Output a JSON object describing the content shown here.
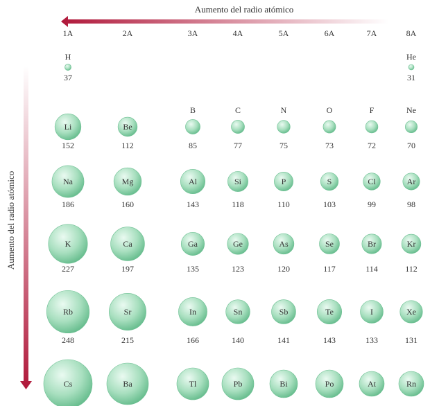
{
  "header": {
    "horizontal_title": "Aumento del radio atómico",
    "vertical_title": "Aumento del radio atómico"
  },
  "groups": [
    "1A",
    "2A",
    "3A",
    "4A",
    "5A",
    "6A",
    "7A",
    "8A"
  ],
  "colors": {
    "arrow_dark": "#b0183a",
    "arrow_light": "#ffffff",
    "sphere_light": "#eafaf1",
    "sphere_mid": "#a8dfbf",
    "sphere_dark": "#5eb887"
  },
  "elements": [
    {
      "symbol": "H",
      "radius": 37,
      "period": 1,
      "col": 0,
      "label": "outside"
    },
    {
      "symbol": "He",
      "radius": 31,
      "period": 1,
      "col": 7,
      "label": "outside"
    },
    {
      "symbol": "Li",
      "radius": 152,
      "period": 2,
      "col": 0,
      "label": "inside"
    },
    {
      "symbol": "Be",
      "radius": 112,
      "period": 2,
      "col": 1,
      "label": "inside"
    },
    {
      "symbol": "B",
      "radius": 85,
      "period": 2,
      "col": 2,
      "label": "outside"
    },
    {
      "symbol": "C",
      "radius": 77,
      "period": 2,
      "col": 3,
      "label": "outside"
    },
    {
      "symbol": "N",
      "radius": 75,
      "period": 2,
      "col": 4,
      "label": "outside"
    },
    {
      "symbol": "O",
      "radius": 73,
      "period": 2,
      "col": 5,
      "label": "outside"
    },
    {
      "symbol": "F",
      "radius": 72,
      "period": 2,
      "col": 6,
      "label": "outside"
    },
    {
      "symbol": "Ne",
      "radius": 70,
      "period": 2,
      "col": 7,
      "label": "outside"
    },
    {
      "symbol": "Na",
      "radius": 186,
      "period": 3,
      "col": 0,
      "label": "inside"
    },
    {
      "symbol": "Mg",
      "radius": 160,
      "period": 3,
      "col": 1,
      "label": "inside"
    },
    {
      "symbol": "Al",
      "radius": 143,
      "period": 3,
      "col": 2,
      "label": "inside"
    },
    {
      "symbol": "Si",
      "radius": 118,
      "period": 3,
      "col": 3,
      "label": "inside"
    },
    {
      "symbol": "P",
      "radius": 110,
      "period": 3,
      "col": 4,
      "label": "inside"
    },
    {
      "symbol": "S",
      "radius": 103,
      "period": 3,
      "col": 5,
      "label": "inside"
    },
    {
      "symbol": "Cl",
      "radius": 99,
      "period": 3,
      "col": 6,
      "label": "inside"
    },
    {
      "symbol": "Ar",
      "radius": 98,
      "period": 3,
      "col": 7,
      "label": "inside"
    },
    {
      "symbol": "K",
      "radius": 227,
      "period": 4,
      "col": 0,
      "label": "inside"
    },
    {
      "symbol": "Ca",
      "radius": 197,
      "period": 4,
      "col": 1,
      "label": "inside"
    },
    {
      "symbol": "Ga",
      "radius": 135,
      "period": 4,
      "col": 2,
      "label": "inside"
    },
    {
      "symbol": "Ge",
      "radius": 123,
      "period": 4,
      "col": 3,
      "label": "inside"
    },
    {
      "symbol": "As",
      "radius": 120,
      "period": 4,
      "col": 4,
      "label": "inside"
    },
    {
      "symbol": "Se",
      "radius": 117,
      "period": 4,
      "col": 5,
      "label": "inside"
    },
    {
      "symbol": "Br",
      "radius": 114,
      "period": 4,
      "col": 6,
      "label": "inside"
    },
    {
      "symbol": "Kr",
      "radius": 112,
      "period": 4,
      "col": 7,
      "label": "inside"
    },
    {
      "symbol": "Rb",
      "radius": 248,
      "period": 5,
      "col": 0,
      "label": "inside"
    },
    {
      "symbol": "Sr",
      "radius": 215,
      "period": 5,
      "col": 1,
      "label": "inside"
    },
    {
      "symbol": "In",
      "radius": 166,
      "period": 5,
      "col": 2,
      "label": "inside"
    },
    {
      "symbol": "Sn",
      "radius": 140,
      "period": 5,
      "col": 3,
      "label": "inside"
    },
    {
      "symbol": "Sb",
      "radius": 141,
      "period": 5,
      "col": 4,
      "label": "inside"
    },
    {
      "symbol": "Te",
      "radius": 143,
      "period": 5,
      "col": 5,
      "label": "inside"
    },
    {
      "symbol": "I",
      "radius": 133,
      "period": 5,
      "col": 6,
      "label": "inside"
    },
    {
      "symbol": "Xe",
      "radius": 131,
      "period": 5,
      "col": 7,
      "label": "inside"
    },
    {
      "symbol": "Cs",
      "radius": null,
      "period": 6,
      "col": 0,
      "label": "inside"
    },
    {
      "symbol": "Ba",
      "radius": null,
      "period": 6,
      "col": 1,
      "label": "inside"
    },
    {
      "symbol": "Tl",
      "radius": null,
      "period": 6,
      "col": 2,
      "label": "inside"
    },
    {
      "symbol": "Pb",
      "radius": null,
      "period": 6,
      "col": 3,
      "label": "inside"
    },
    {
      "symbol": "Bi",
      "radius": null,
      "period": 6,
      "col": 4,
      "label": "inside"
    },
    {
      "symbol": "Po",
      "radius": null,
      "period": 6,
      "col": 5,
      "label": "inside"
    },
    {
      "symbol": "At",
      "radius": null,
      "period": 6,
      "col": 6,
      "label": "inside"
    },
    {
      "symbol": "Rn",
      "radius": null,
      "period": 6,
      "col": 7,
      "label": "inside"
    }
  ]
}
